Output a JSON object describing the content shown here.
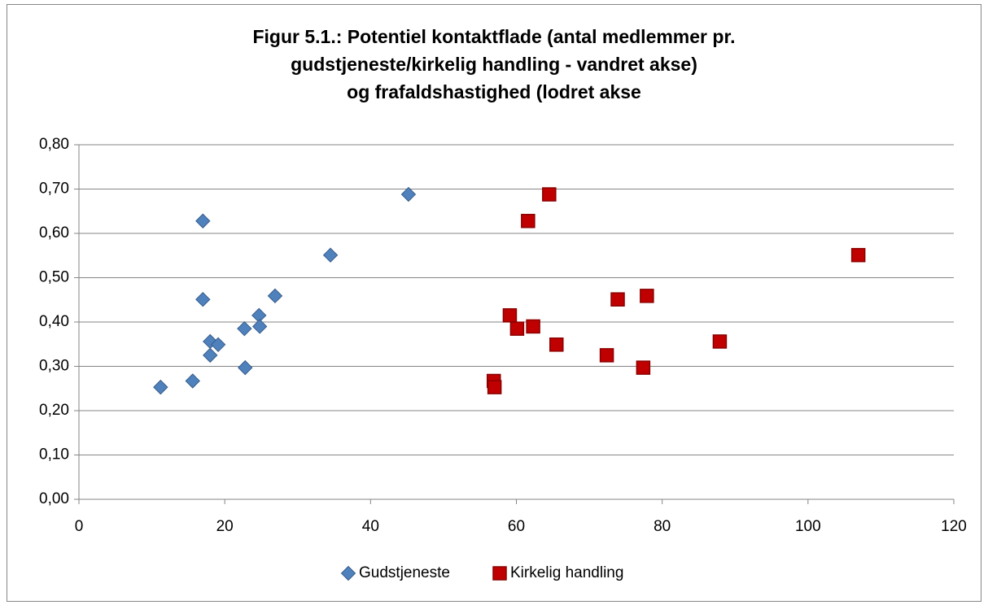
{
  "chart_data": {
    "type": "scatter",
    "title": [
      "Figur 5.1.: Potentiel kontaktflade (antal medlemmer pr.",
      "gudstjeneste/kirkelig handling - vandret akse)",
      "og frafaldshastighed (lodret akse"
    ],
    "xlim": [
      0,
      120
    ],
    "xticks": [
      0,
      20,
      40,
      60,
      80,
      100,
      120
    ],
    "ylim": [
      0,
      0.8
    ],
    "yticks": [
      {
        "value": 0,
        "label": "0,00"
      },
      {
        "value": 0.1,
        "label": "0,10"
      },
      {
        "value": 0.2,
        "label": "0,20"
      },
      {
        "value": 0.3,
        "label": "0,30"
      },
      {
        "value": 0.4,
        "label": "0,40"
      },
      {
        "value": 0.5,
        "label": "0,50"
      },
      {
        "value": 0.6,
        "label": "0,60"
      },
      {
        "value": 0.7,
        "label": "0,70"
      },
      {
        "value": 0.8,
        "label": "0,80"
      }
    ],
    "grid": true,
    "legend": "bottom",
    "series": [
      {
        "name": "Gudstjeneste",
        "color": "#4f81bd",
        "marker": "diamond",
        "x": [
          11.2,
          15.6,
          17.0,
          17.0,
          18.0,
          18.0,
          19.1,
          22.7,
          22.8,
          24.7,
          24.8,
          26.9,
          34.5,
          45.2
        ],
        "values": [
          0.253,
          0.267,
          0.628,
          0.451,
          0.356,
          0.325,
          0.349,
          0.385,
          0.297,
          0.415,
          0.39,
          0.459,
          0.551,
          0.688
        ]
      },
      {
        "name": "Kirkelig handling",
        "color": "#c00000",
        "marker": "square",
        "x": [
          56.9,
          57.0,
          59.1,
          60.1,
          61.6,
          62.3,
          64.5,
          65.5,
          72.4,
          73.9,
          77.4,
          77.9,
          87.9,
          106.9
        ],
        "values": [
          0.267,
          0.253,
          0.415,
          0.385,
          0.628,
          0.39,
          0.688,
          0.349,
          0.325,
          0.451,
          0.297,
          0.459,
          0.356,
          0.551
        ]
      }
    ]
  }
}
